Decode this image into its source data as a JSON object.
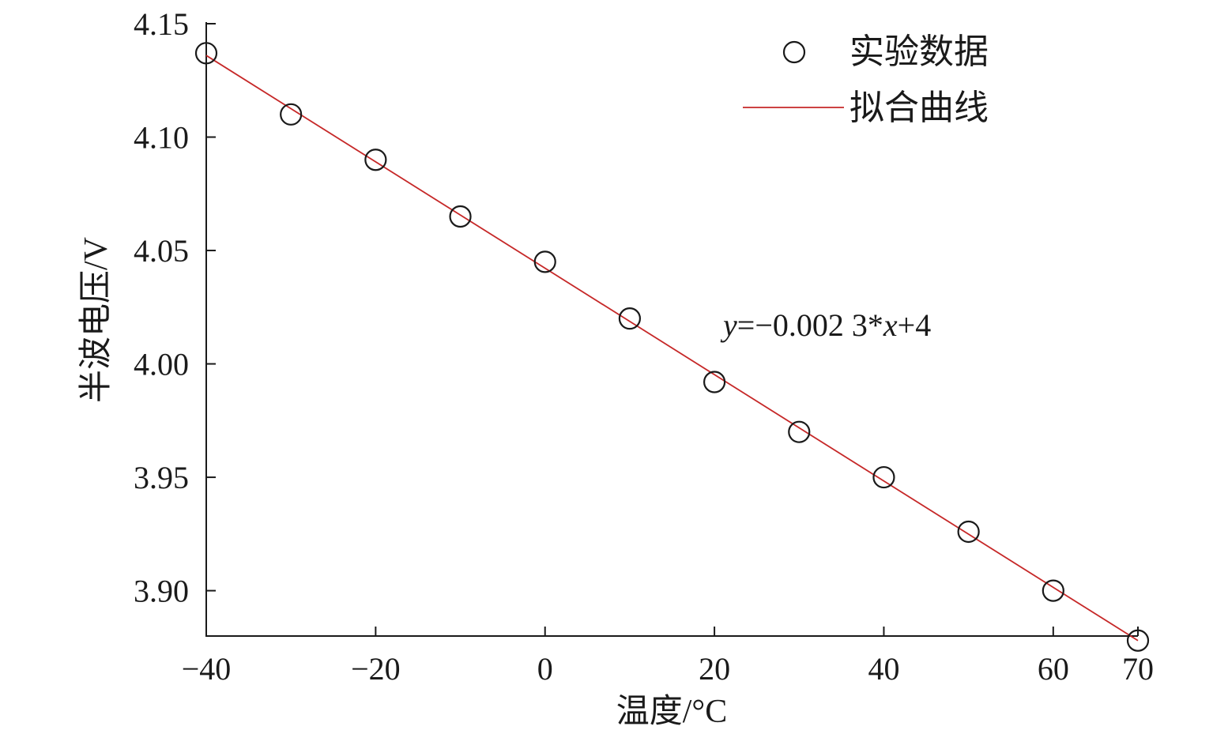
{
  "chart_data": {
    "type": "scatter",
    "xlabel": "温度/°C",
    "ylabel": "半波电压/V",
    "xlim": [
      -40,
      70
    ],
    "ylim": [
      3.88,
      4.15
    ],
    "x_ticks": [
      -40,
      -20,
      0,
      20,
      40,
      60,
      70
    ],
    "x_tick_labels": [
      "−40",
      "−20",
      "0",
      "20",
      "40",
      "60",
      "70"
    ],
    "y_ticks": [
      3.9,
      3.95,
      4.0,
      4.05,
      4.1,
      4.15
    ],
    "y_tick_labels": [
      "3.90",
      "3.95",
      "4.00",
      "4.05",
      "4.10",
      "4.15"
    ],
    "grid": false,
    "legend_position": "top-right",
    "series": [
      {
        "name": "实验数据",
        "kind": "scatter",
        "marker": "circle",
        "color": "#1a1a1a",
        "x": [
          -40,
          -30,
          -20,
          -10,
          0,
          10,
          20,
          30,
          40,
          50,
          60,
          70
        ],
        "y": [
          4.137,
          4.11,
          4.09,
          4.065,
          4.045,
          4.02,
          3.992,
          3.97,
          3.95,
          3.926,
          3.9,
          3.878
        ]
      },
      {
        "name": "拟合曲线",
        "kind": "line",
        "color": "#c62828",
        "x": [
          -40,
          70
        ],
        "y": [
          4.136,
          3.878
        ]
      }
    ],
    "annotation": {
      "y_var": "y",
      "middle": "=−0.002 3*",
      "x_var": "x",
      "tail": "+4"
    }
  }
}
